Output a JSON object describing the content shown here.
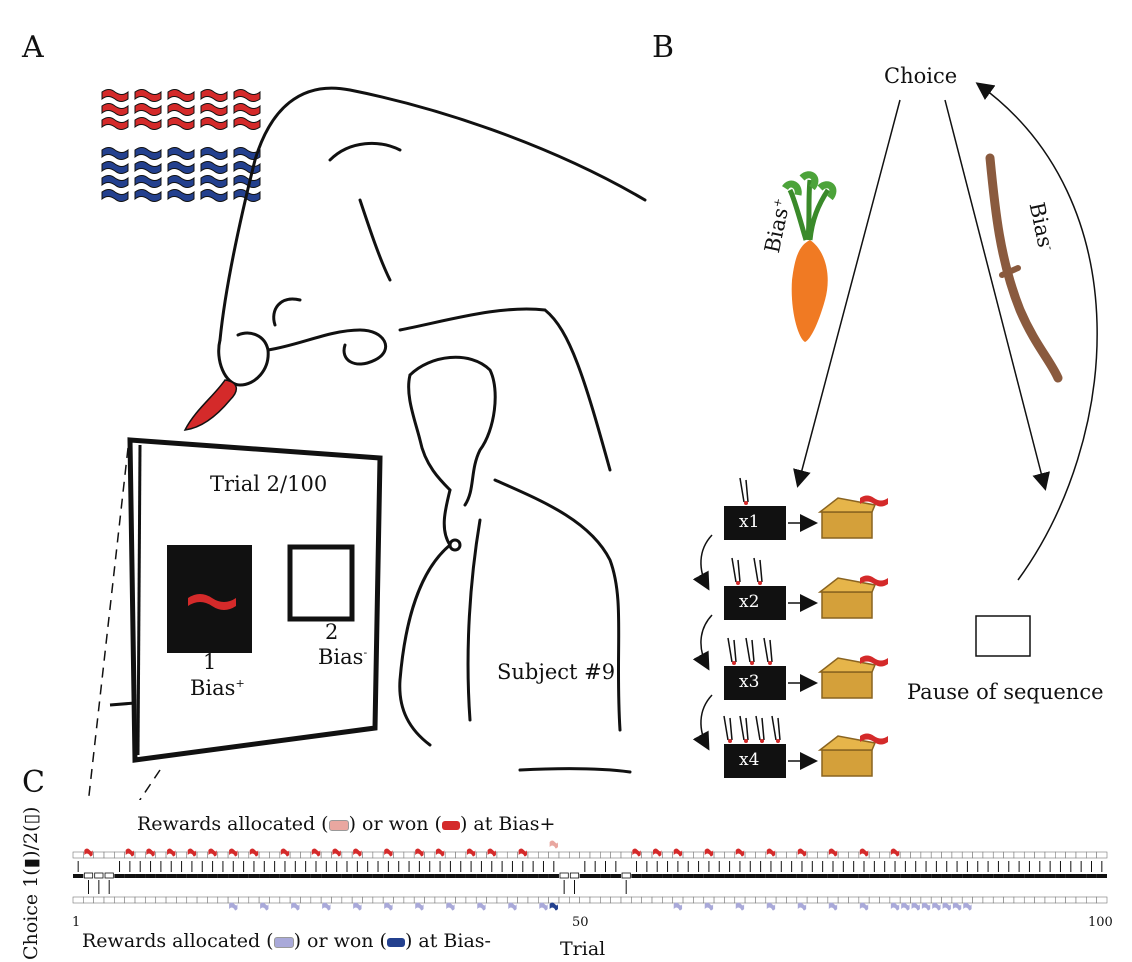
{
  "panels": {
    "a": {
      "letter": "A"
    },
    "b": {
      "letter": "B"
    },
    "c": {
      "letter": "C"
    }
  },
  "panel_a": {
    "trial_label": "Trial 2/100",
    "option_1_number": "1",
    "option_1_bias": "Bias",
    "option_1_sup": "+",
    "option_2_number": "2",
    "option_2_bias": "Bias",
    "option_2_sup": "-",
    "subject_label": "Subject #9"
  },
  "panel_b": {
    "choice_label": "Choice",
    "bias_plus": "Bias",
    "bias_plus_sup": "+",
    "bias_minus": "Bias",
    "bias_minus_sup": "-",
    "multipliers": [
      "x1",
      "x2",
      "x3",
      "x4"
    ],
    "pause_label": "Pause of sequence"
  },
  "panel_c": {
    "top_label_pre": "Rewards allocated (",
    "top_label_mid": ") or won (",
    "top_label_post": ") at Bias+",
    "bottom_label_pre": "Rewards allocated (",
    "bottom_label_mid": ") or won (",
    "bottom_label_post": ") at Bias-",
    "y_label": "Choice 1(▮)/2(▯)",
    "x_label": "Trial",
    "tick_1": "1",
    "tick_50": "50",
    "tick_100": "100"
  },
  "colors": {
    "red": "#d42a2a",
    "blue": "#23408e",
    "light_red": "#e9a7a0",
    "light_blue": "#a9a9d9",
    "gray": "#9a9a9a"
  },
  "chart_data": {
    "type": "table",
    "trials": 100,
    "choice_2_trials": [
      2,
      3,
      4,
      48,
      49,
      54
    ],
    "bias_plus_won_trials": [
      2,
      6,
      8,
      10,
      12,
      14,
      16,
      18,
      21,
      24,
      26,
      28,
      31,
      34,
      36,
      39,
      41,
      44,
      55,
      57,
      59,
      62,
      65,
      68,
      71,
      74,
      77,
      80
    ],
    "bias_plus_allocated_trials": [
      47
    ],
    "bias_minus_allocated_trials": [
      16,
      19,
      22,
      25,
      28,
      31,
      34,
      37,
      40,
      43,
      46,
      59,
      62,
      65,
      68,
      71,
      74,
      77,
      80,
      81,
      82,
      83,
      84,
      85,
      86,
      87
    ],
    "bias_minus_won_trials": [
      47
    ]
  }
}
